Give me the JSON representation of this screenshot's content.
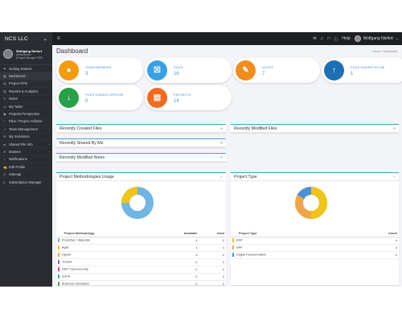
{
  "topbar": {
    "brand": "NCS LLC",
    "user_name": "Wolfgang Niefert",
    "help": "Help"
  },
  "profile": {
    "name": "Wolfgang Niefort",
    "role1": "Administrator",
    "role2": "(Project Manager PMP)"
  },
  "sidebar": {
    "items": [
      {
        "label": "Getting Started",
        "icon": "⚑",
        "arrow": ""
      },
      {
        "label": "Dashboard",
        "icon": "▦",
        "arrow": ""
      },
      {
        "label": "Project KPIs",
        "icon": "▤",
        "arrow": ""
      },
      {
        "label": "Reports & Analytics",
        "icon": "▥",
        "arrow": ""
      },
      {
        "label": "Notes",
        "icon": "✎",
        "arrow": ""
      },
      {
        "label": "My Tasks",
        "icon": "☑",
        "arrow": ""
      },
      {
        "label": "Projects Perspective",
        "icon": "▣",
        "arrow": ""
      },
      {
        "label": "Files / Project Artifacts",
        "icon": "□",
        "arrow": ""
      },
      {
        "label": "Team Management",
        "icon": "☺",
        "arrow": "‹"
      },
      {
        "label": "My Invitations",
        "icon": "✉",
        "arrow": ""
      },
      {
        "label": "Shared File Info",
        "icon": "⇄",
        "arrow": "‹"
      },
      {
        "label": "Masters",
        "icon": "☰",
        "arrow": "‹"
      },
      {
        "label": "Notifications",
        "icon": "♪",
        "arrow": ""
      },
      {
        "label": "Edit Profile",
        "icon": "✍",
        "arrow": ""
      },
      {
        "label": "Sitemap",
        "icon": "☷",
        "arrow": ""
      },
      {
        "label": "Subscription Manager",
        "icon": "$",
        "arrow": ""
      }
    ]
  },
  "page": {
    "title": "Dashboard",
    "breadcrumb": "⌂ Home  /  Dashboard"
  },
  "stats": [
    {
      "label": "TEAM MEMBERS",
      "value": "3",
      "color": "#f39c12",
      "icon": "●"
    },
    {
      "label": "FILES",
      "value": "16",
      "color": "#3aa0e3",
      "icon": "☒"
    },
    {
      "label": "NOTES",
      "value": "7",
      "color": "#f28c1c",
      "icon": "✎"
    },
    {
      "label": "FILES SHARED BY ME",
      "value": "1",
      "color": "#1f6fb5",
      "icon": "↑"
    },
    {
      "label": "FILES SHARED WITH ME",
      "value": "0",
      "color": "#27a047",
      "icon": "↓"
    },
    {
      "label": "PROJECTS",
      "value": "14",
      "color": "#f26b21",
      "icon": "▤"
    }
  ],
  "panels": {
    "recently_created": "Recently Created Files",
    "recently_modified": "Recently Modified Files",
    "recently_shared": "Recently Shared By Me",
    "recently_notes": "Recently Modified Notes",
    "methodology": "Project Methodologies Usage",
    "project_type": "Project Type"
  },
  "methodology_table": {
    "headers": [
      "Project Methodology",
      "Available",
      "Used"
    ],
    "rows": [
      {
        "name": "Predictive / Waterfall",
        "available": "4",
        "used": "0",
        "color": "#6fb6e3"
      },
      {
        "name": "Agile",
        "available": "1",
        "used": "1",
        "color": "#f0c419"
      },
      {
        "name": "Hybrid",
        "available": "3",
        "used": "0",
        "color": "#f0a44a"
      },
      {
        "name": "TOGAF",
        "available": "0",
        "used": "0",
        "color": "#8a6cc0"
      },
      {
        "name": "NIST Cybersecurity",
        "available": "0",
        "used": "0",
        "color": "#e0457b"
      },
      {
        "name": "ISA M",
        "available": "0",
        "used": "0",
        "color": "#38b3a6"
      },
      {
        "name": "Business Simulation",
        "available": "0",
        "used": "0",
        "color": "#5aa04a"
      }
    ]
  },
  "type_table": {
    "headers": [
      "Project Type",
      "Count"
    ],
    "rows": [
      {
        "name": "ERP",
        "count": "4",
        "color": "#f0c419"
      },
      {
        "name": "SAP",
        "count": "3",
        "color": "#f0a44a"
      },
      {
        "name": "Digital Transformation",
        "count": "2",
        "color": "#4a90d9"
      }
    ]
  },
  "colors": {
    "accent": "#41a1d6",
    "sidebar": "#2a2c31",
    "topbar": "#1d1f23"
  }
}
